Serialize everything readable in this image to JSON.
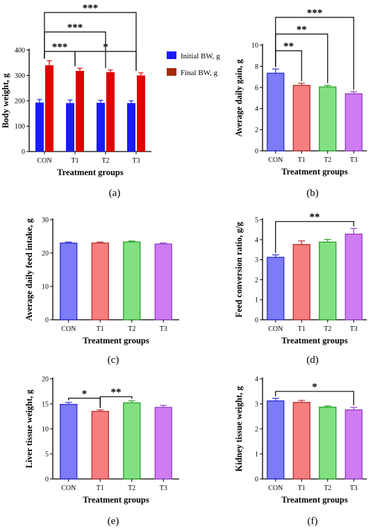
{
  "colors": {
    "initial": "#1a1aff",
    "final": "#e00000",
    "final_legend": "#a52a0a",
    "CON": "#7c7cf8",
    "T1": "#f57f7f",
    "T2": "#82e082",
    "T3": "#cf7cf3",
    "CON_edge": "#2b2bd6",
    "T1_edge": "#b52f2f",
    "T2_edge": "#27a127",
    "T3_edge": "#8f3fc4"
  },
  "chart_data": [
    {
      "id": "a",
      "type": "bar",
      "panel_label": "(a)",
      "categories": [
        "CON",
        "T1",
        "T2",
        "T3"
      ],
      "series": [
        {
          "name": "Initial BW, g",
          "values": [
            193,
            191,
            192,
            191
          ],
          "errors": [
            12,
            12,
            10,
            9
          ]
        },
        {
          "name": "Final BW, g",
          "values": [
            340,
            318,
            313,
            300
          ],
          "errors": [
            18,
            10,
            8,
            10
          ]
        }
      ],
      "xlabel": "Treatment groups",
      "ylabel": "Body weight, g",
      "ylim": [
        0,
        400
      ],
      "yticks": [
        0,
        100,
        200,
        300,
        400
      ],
      "legend": "right",
      "significance": [
        {
          "label": "***",
          "from": "CON",
          "to": "T1"
        },
        {
          "label": "*",
          "from": "T1",
          "to": "T3"
        },
        {
          "label": "***",
          "from": "CON",
          "to": "T2"
        },
        {
          "label": "***",
          "from": "CON",
          "to": "T3"
        }
      ]
    },
    {
      "id": "b",
      "type": "bar",
      "panel_label": "(b)",
      "categories": [
        "CON",
        "T1",
        "T2",
        "T3"
      ],
      "values": [
        7.35,
        6.2,
        6.05,
        5.4
      ],
      "errors": [
        0.4,
        0.2,
        0.15,
        0.2
      ],
      "xlabel": "Treatment groups",
      "ylabel": "Average daily gain, g",
      "ylim": [
        0,
        10
      ],
      "yticks": [
        0,
        2,
        4,
        6,
        8,
        10
      ],
      "significance": [
        {
          "label": "**",
          "from": "CON",
          "to": "T1"
        },
        {
          "label": "**",
          "from": "CON",
          "to": "T2"
        },
        {
          "label": "***",
          "from": "CON",
          "to": "T3"
        }
      ]
    },
    {
      "id": "c",
      "type": "bar",
      "panel_label": "(c)",
      "categories": [
        "CON",
        "T1",
        "T2",
        "T3"
      ],
      "values": [
        23.0,
        23.0,
        23.3,
        22.7
      ],
      "errors": [
        0.3,
        0.3,
        0.3,
        0.3
      ],
      "xlabel": "Treatment groups",
      "ylabel": "Average daily feed intake, g",
      "ylim": [
        0,
        30
      ],
      "yticks": [
        0,
        10,
        20,
        30
      ],
      "significance": []
    },
    {
      "id": "d",
      "type": "bar",
      "panel_label": "(d)",
      "categories": [
        "CON",
        "T1",
        "T2",
        "T3"
      ],
      "values": [
        3.12,
        3.76,
        3.88,
        4.28
      ],
      "errors": [
        0.12,
        0.18,
        0.13,
        0.28
      ],
      "xlabel": "Treatment groups",
      "ylabel": "Feed conversion ratio, g/g",
      "ylim": [
        0,
        5
      ],
      "yticks": [
        0,
        1,
        2,
        3,
        4,
        5
      ],
      "significance": [
        {
          "label": "**",
          "from": "CON",
          "to": "T3"
        }
      ]
    },
    {
      "id": "e",
      "type": "bar",
      "panel_label": "(e)",
      "categories": [
        "CON",
        "T1",
        "T2",
        "T3"
      ],
      "values": [
        14.9,
        13.5,
        15.2,
        14.3
      ],
      "errors": [
        0.4,
        0.3,
        0.4,
        0.4
      ],
      "xlabel": "Treatment groups",
      "ylabel": "Liver tissue weight, g",
      "ylim": [
        0,
        20
      ],
      "yticks": [
        0,
        5,
        10,
        15,
        20
      ],
      "significance": [
        {
          "label": "*",
          "from": "CON",
          "to": "T1"
        },
        {
          "label": "**",
          "from": "T1",
          "to": "T2"
        }
      ]
    },
    {
      "id": "f",
      "type": "bar",
      "panel_label": "(f)",
      "categories": [
        "CON",
        "T1",
        "T2",
        "T3"
      ],
      "values": [
        3.12,
        3.06,
        2.87,
        2.76
      ],
      "errors": [
        0.1,
        0.08,
        0.05,
        0.1
      ],
      "xlabel": "Treatment groups",
      "ylabel": "Kidney tissue weight, g",
      "ylim": [
        0,
        4
      ],
      "yticks": [
        0,
        1,
        2,
        3,
        4
      ],
      "significance": [
        {
          "label": "*",
          "from": "CON",
          "to": "T3"
        }
      ]
    }
  ]
}
